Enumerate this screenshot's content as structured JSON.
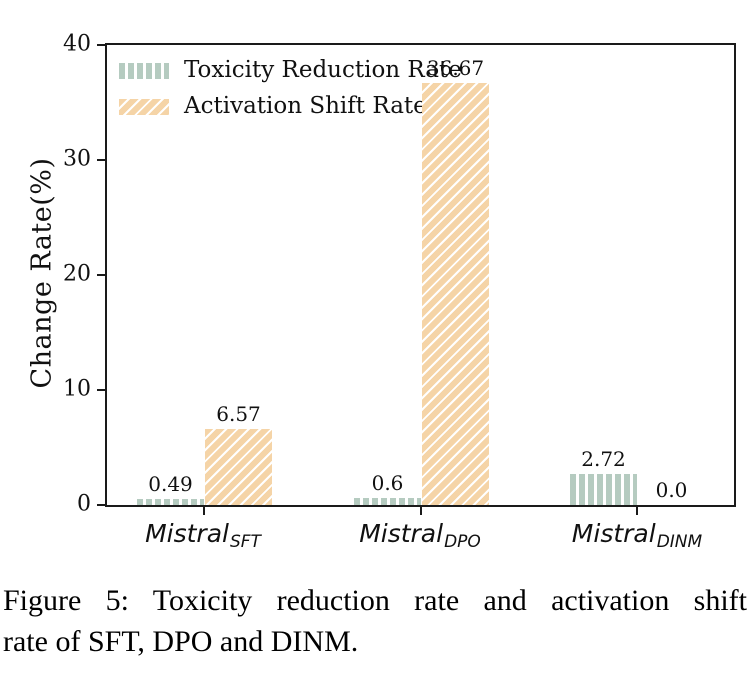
{
  "figure": {
    "caption_line1": "Figure 5: Toxicity reduction rate and activation shift",
    "caption_line2": "rate of SFT, DPO and DINM."
  },
  "chart_data": {
    "type": "bar",
    "title": "",
    "xlabel": "",
    "ylabel": "Change Rate(%)",
    "ylim": [
      0,
      40
    ],
    "yticks": [
      0,
      10,
      20,
      30,
      40
    ],
    "grid": false,
    "legend_position": "upper-left",
    "categories": [
      {
        "base": "Mistral",
        "sub": "SFT"
      },
      {
        "base": "Mistral",
        "sub": "DPO"
      },
      {
        "base": "Mistral",
        "sub": "DINM"
      }
    ],
    "series": [
      {
        "name": "Toxicity Reduction Rate",
        "values": [
          0.49,
          0.6,
          2.72
        ],
        "value_labels": [
          "0.49",
          "0.6",
          "2.72"
        ],
        "color": "#b5cbc0",
        "hatch": "vertical",
        "hatch_color": "#ffffff"
      },
      {
        "name": "Activation Shift Rate",
        "values": [
          6.57,
          36.67,
          0.0
        ],
        "value_labels": [
          "6.57",
          "36.67",
          "0.0"
        ],
        "color": "#f5d4a7",
        "hatch": "diagonal",
        "hatch_color": "#ffffff"
      }
    ]
  }
}
